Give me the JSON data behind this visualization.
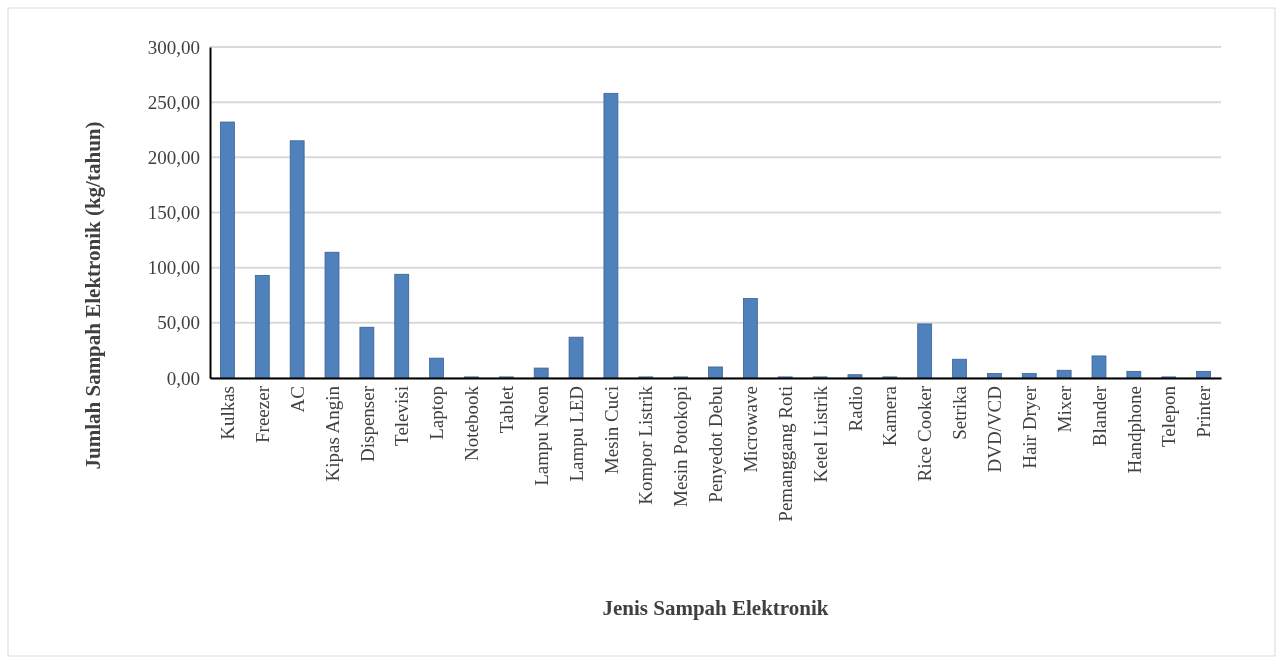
{
  "chart_data": {
    "type": "bar",
    "xlabel": "Jenis Sampah Elektronik",
    "ylabel": "Jumlah Sampah Elektronik  (kg/tahun)",
    "categories": [
      "Kulkas",
      "Freezer",
      "AC",
      "Kipas Angin",
      "Dispenser",
      "Televisi",
      "Laptop",
      "Notebook",
      "Tablet",
      "Lampu Neon",
      "Lampu LED",
      "Mesin Cuci",
      "Kompor Listrik",
      "Mesin Potokopi",
      "Penyedot Debu",
      "Microwave",
      "Pemanggang Roti",
      "Ketel Listrik",
      "Radio",
      "Kamera",
      "Rice Cooker",
      "Setrika",
      "DVD/VCD",
      "Hair Dryer",
      "Mixer",
      "Blander",
      "Handphone",
      "Telepon",
      "Printer"
    ],
    "values": [
      232,
      93,
      215,
      114,
      46,
      94,
      18,
      1,
      1,
      9,
      37,
      258,
      1,
      1,
      10,
      72,
      1,
      1,
      3,
      1,
      49,
      17,
      4,
      4,
      7,
      20,
      6,
      1,
      6
    ],
    "color": "#4f81bd",
    "ylim": [
      0,
      300
    ],
    "yticks": [
      {
        "value": 0,
        "label": "0,00"
      },
      {
        "value": 50,
        "label": "50,00"
      },
      {
        "value": 100,
        "label": "100,00"
      },
      {
        "value": 150,
        "label": "150,00"
      },
      {
        "value": 200,
        "label": "200,00"
      },
      {
        "value": 250,
        "label": "250,00"
      },
      {
        "value": 300,
        "label": "300,00"
      }
    ],
    "grid": "y"
  }
}
